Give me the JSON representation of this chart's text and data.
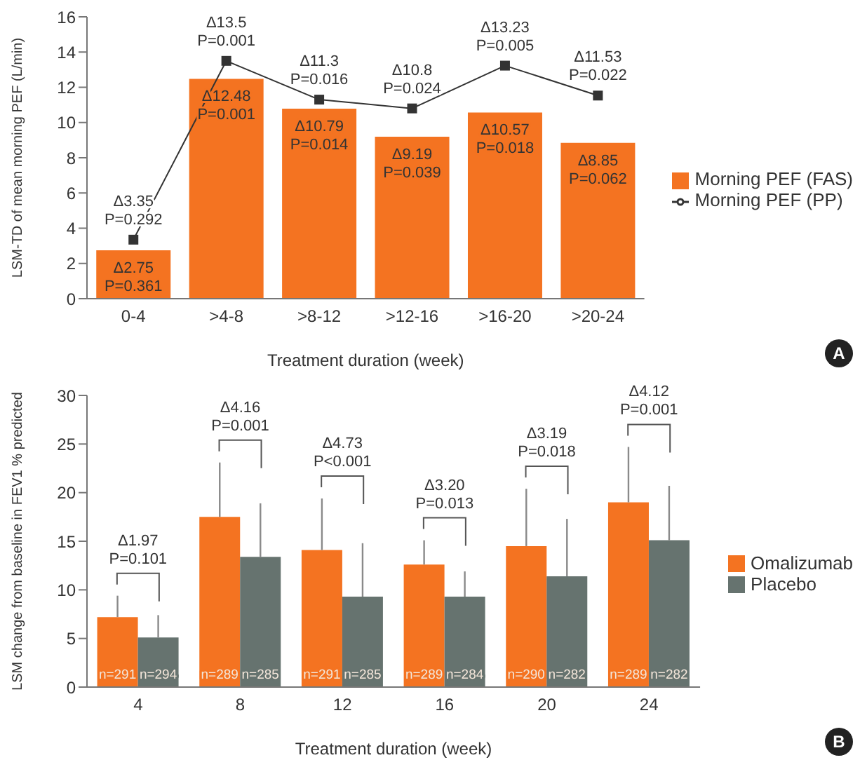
{
  "chart_data": [
    {
      "type": "bar",
      "categories": [
        "0-4",
        ">4-8",
        ">8-12",
        ">12-16",
        ">16-20",
        ">20-24"
      ],
      "xlabel": "Treatment duration (week)",
      "ylabel": "LSM-TD of mean morning PEF (L/min)",
      "ylim": [
        0,
        16
      ],
      "yticks": [
        0,
        2,
        4,
        6,
        8,
        10,
        12,
        14,
        16
      ],
      "legend": "right",
      "marker": "square",
      "annotations": [
        "A"
      ],
      "series": [
        {
          "name": "Morning PEF (FAS)",
          "color": "#f47321",
          "values": [
            2.75,
            12.48,
            10.79,
            9.19,
            10.57,
            8.85
          ],
          "value_labels": [
            "Δ2.75\nP=0.361",
            "Δ12.48\nP=0.001",
            "Δ10.79\nP=0.014",
            "Δ9.19\nP=0.039",
            "Δ10.57\nP=0.018",
            "Δ8.85\nP=0.062"
          ]
        },
        {
          "name": "Morning PEF (PP)",
          "type": "line",
          "color": "#333333",
          "values": [
            3.35,
            13.5,
            11.3,
            10.8,
            13.23,
            11.53
          ],
          "value_labels": [
            "Δ3.35\nP=0.292",
            "Δ13.5\nP=0.001",
            "Δ11.3\nP=0.016",
            "Δ10.8\nP=0.024",
            "Δ13.23\nP=0.005",
            "Δ11.53\nP=0.022"
          ]
        }
      ]
    },
    {
      "type": "bar",
      "categories": [
        "4",
        "8",
        "12",
        "16",
        "20",
        "24"
      ],
      "xlabel": "Treatment duration (week)",
      "ylabel": "LSM change from baseline in FEV1 % predicted",
      "ylim": [
        0,
        30
      ],
      "yticks": [
        0,
        5,
        10,
        15,
        20,
        25,
        30
      ],
      "legend": "right",
      "annotations": [
        "n=291",
        "n=294",
        "n=289",
        "n=285",
        "n=291",
        "n=285",
        "n=289",
        "n=284",
        "n=290",
        "n=282",
        "n=289",
        "n=282",
        "Δ1.97\nP=0.101",
        "Δ4.16\nP=0.001",
        "Δ4.73\nP<0.001",
        "Δ3.20\nP=0.013",
        "Δ3.19\nP=0.018",
        "Δ4.12\nP=0.001",
        "B"
      ],
      "series": [
        {
          "name": "Omalizumab",
          "color": "#f47321",
          "values": [
            7.2,
            17.5,
            14.1,
            12.6,
            14.5,
            19.0
          ],
          "errors": [
            [
              7.2,
              9.4
            ],
            [
              17.5,
              23.1
            ],
            [
              14.1,
              19.4
            ],
            [
              12.6,
              15.1
            ],
            [
              14.5,
              20.4
            ],
            [
              19.0,
              24.7
            ]
          ]
        },
        {
          "name": "Placebo",
          "color": "#66736f",
          "values": [
            5.1,
            13.4,
            9.3,
            9.3,
            11.4,
            15.1
          ],
          "errors": [
            [
              5.1,
              7.4
            ],
            [
              13.4,
              18.9
            ],
            [
              9.3,
              14.8
            ],
            [
              9.3,
              11.9
            ],
            [
              11.4,
              17.3
            ],
            [
              15.1,
              20.7
            ]
          ]
        }
      ]
    }
  ]
}
